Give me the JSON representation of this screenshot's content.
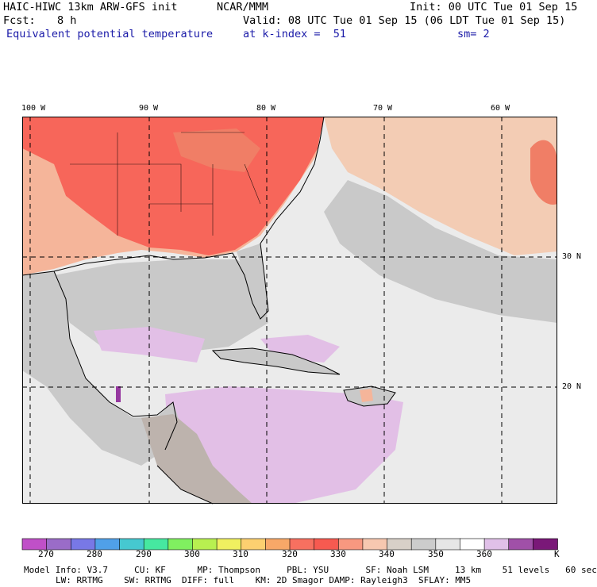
{
  "header": {
    "model": "HAIC-HIWC 13km ARW-GFS init",
    "center": "NCAR/MMM",
    "init": "Init: 00 UTC Tue 01 Sep 15",
    "fcst_label": "Fcst:",
    "fcst_value": "8 h",
    "valid": "Valid: 08 UTC Tue 01 Sep 15 (06 LDT Tue 01 Sep 15)",
    "field": "Equivalent potential temperature",
    "level": "at k-index =  51",
    "smoothing": "sm= 2"
  },
  "map": {
    "lon_labels": [
      "100 W",
      "90 W",
      "80 W",
      "70 W",
      "60 W"
    ],
    "lat_labels": [
      "30 N",
      "20 N"
    ],
    "colors": {
      "land_warm": "#f5b59a",
      "land_hot": "#f7665a",
      "land_hotter": "#f07e66",
      "gray": "#c9c9c9",
      "light": "#ebebeb",
      "white": "#f7f7f7",
      "lavender": "#e2bfe6",
      "purple": "#cc8fd6",
      "deep_purple": "#9638a0",
      "tan": "#f3ccb4"
    }
  },
  "colorbar": {
    "colors": [
      "#c050c8",
      "#9a6cc8",
      "#7878e6",
      "#50a0e8",
      "#46c8d0",
      "#46e8a0",
      "#80f060",
      "#b8f050",
      "#f0f060",
      "#fcd070",
      "#f8a868",
      "#f77060",
      "#f75a50",
      "#f89880",
      "#f7c8b0",
      "#d8d0c8",
      "#cccccc",
      "#e6e6e6",
      "#ffffff",
      "#e0c0e8",
      "#a050a8",
      "#7a1878"
    ],
    "labels": [
      "270",
      "280",
      "290",
      "300",
      "310",
      "320",
      "330",
      "340",
      "350",
      "360"
    ],
    "unit": "K"
  },
  "footer": {
    "line1": "Model Info: V3.7     CU: KF      MP: Thompson     PBL: YSU       SF: Noah LSM     13 km    51 levels   60 sec",
    "line2": "LW: RRTMG    SW: RRTMG  DIFF: full    KM: 2D Smagor DAMP: Rayleigh3  SFLAY: MM5"
  }
}
